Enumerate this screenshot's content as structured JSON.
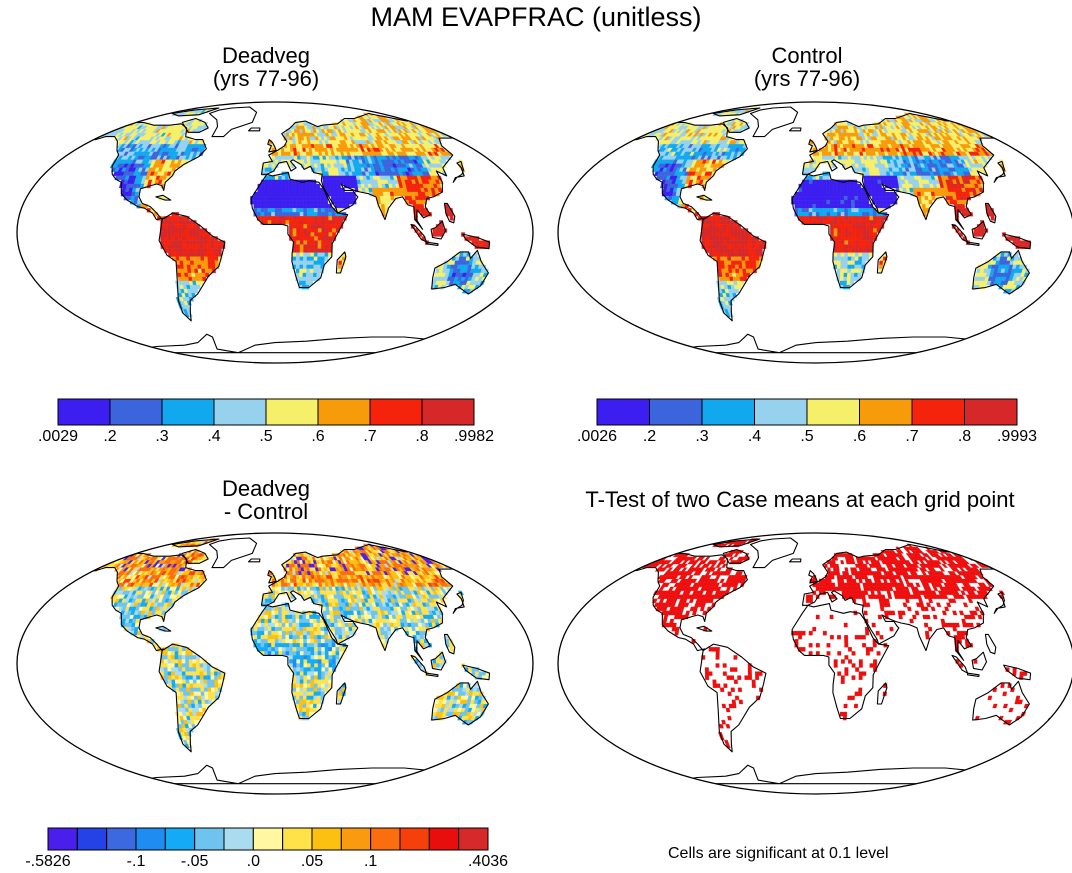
{
  "main_title": "MAM EVAPFRAC (unitless)",
  "colors": {
    "abs_scale": [
      "#3c1ef0",
      "#3c64dc",
      "#12a8f0",
      "#96d2ee",
      "#f6ef6a",
      "#f89b0a",
      "#f5230c",
      "#d62828"
    ],
    "diff_scale": [
      "#4a1eeb",
      "#2443e6",
      "#3c68e0",
      "#1e8cf0",
      "#14aaf5",
      "#6ec4ee",
      "#aadcf0",
      "#fff8a0",
      "#ffe14a",
      "#fcc010",
      "#fa9a10",
      "#fa6e0f",
      "#f6400c",
      "#e80e0e",
      "#d62a2a"
    ],
    "significant": "#ee0e0e",
    "land_outline": "#000000"
  },
  "chart_data": [
    {
      "type": "heatmap",
      "projection": "robinson",
      "title": "Deadveg",
      "subtitle": "(yrs 77-96)",
      "colorbar": {
        "labels": [
          ".0029",
          ".2",
          ".3",
          ".4",
          ".5",
          ".6",
          ".7",
          ".8",
          ".9982"
        ],
        "range": [
          0.0029,
          0.9982
        ]
      }
    },
    {
      "type": "heatmap",
      "projection": "robinson",
      "title": "Control",
      "subtitle": "(yrs 77-96)",
      "colorbar": {
        "labels": [
          ".0026",
          ".2",
          ".3",
          ".4",
          ".5",
          ".6",
          ".7",
          ".8",
          ".9993"
        ],
        "range": [
          0.0026,
          0.9993
        ]
      }
    },
    {
      "type": "heatmap",
      "projection": "robinson",
      "title": "Deadveg",
      "subtitle": "- Control",
      "colorbar": {
        "labels": [
          "-.5826",
          "-.1",
          "-.05",
          ".0",
          ".05",
          ".1",
          ".4036"
        ],
        "range": [
          -0.5826,
          0.4036
        ]
      }
    },
    {
      "type": "heatmap",
      "projection": "robinson",
      "title": "T-Test of two Case means at each grid point",
      "significance_level": 0.1,
      "note": "Cells are significant at 0.1 level"
    }
  ]
}
